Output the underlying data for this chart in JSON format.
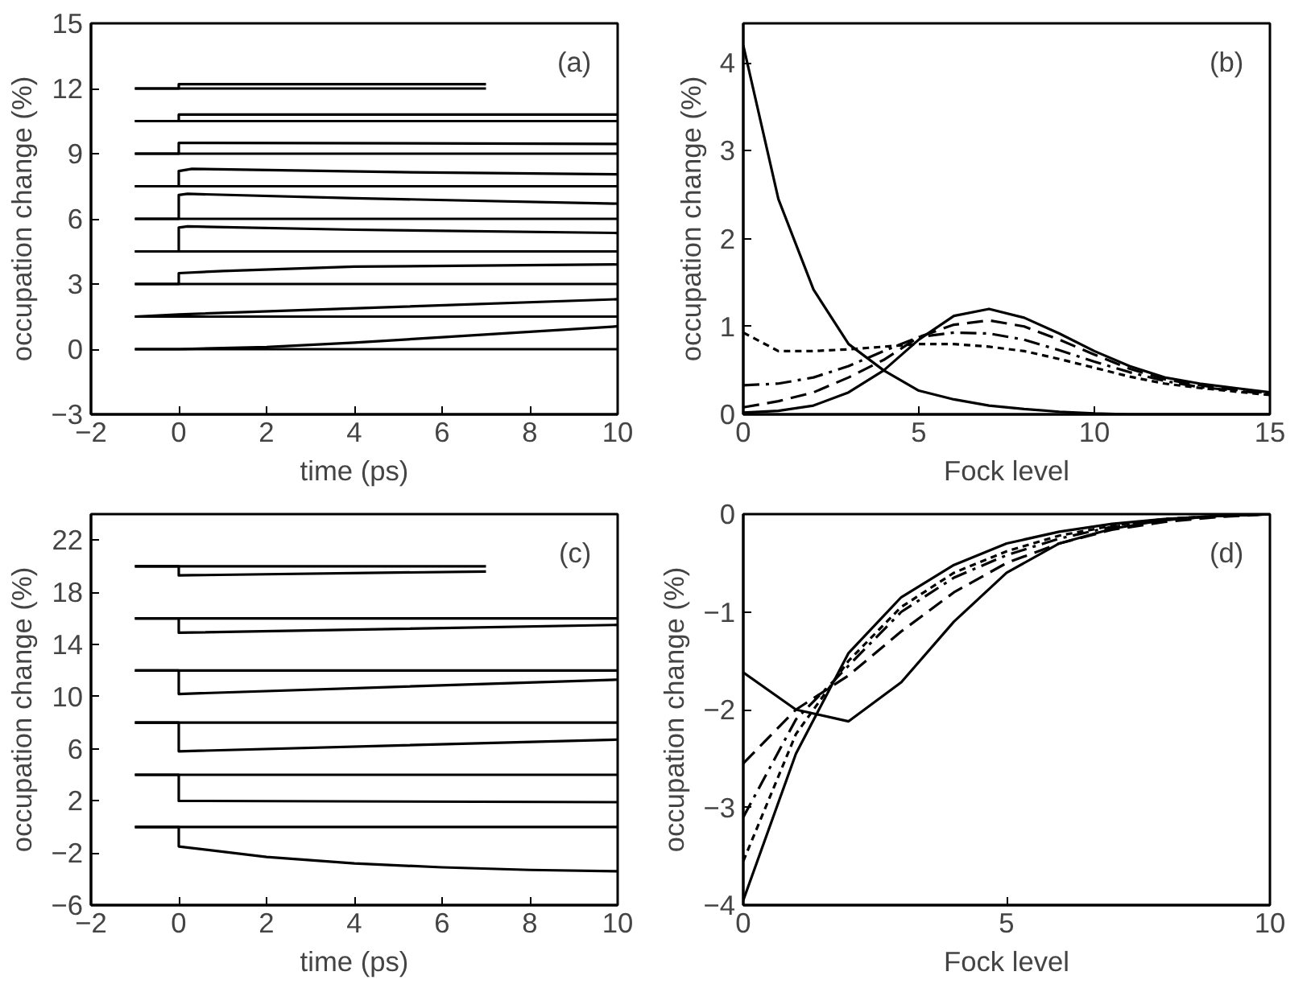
{
  "chart_data": [
    {
      "type": "line",
      "xlabel": "time (ps)",
      "ylabel": "occupation change (%)",
      "xlim": [
        -2,
        10
      ],
      "ylim": [
        -3,
        15
      ],
      "xticks": [
        -2,
        0,
        2,
        4,
        6,
        8,
        10
      ],
      "yticks": [
        -3,
        0,
        3,
        6,
        9,
        12,
        15
      ],
      "annotations": [
        "(a)"
      ],
      "grid": false,
      "line_style": "solid",
      "series": [
        {
          "color": "#000000",
          "x": [
            -1,
            10
          ],
          "values": [
            0,
            0
          ]
        },
        {
          "color": "#000000",
          "x": [
            -1,
            0,
            2,
            4,
            6,
            8,
            10
          ],
          "values": [
            0,
            0,
            0.1,
            0.3,
            0.55,
            0.8,
            1.05
          ]
        },
        {
          "color": "#000000",
          "x": [
            -1,
            10
          ],
          "values": [
            1.5,
            1.5
          ]
        },
        {
          "color": "#000000",
          "x": [
            -1,
            0,
            5,
            10
          ],
          "values": [
            1.5,
            1.6,
            1.95,
            2.3
          ]
        },
        {
          "color": "#000000",
          "x": [
            -1,
            10
          ],
          "values": [
            3,
            3
          ]
        },
        {
          "color": "#000000",
          "x": [
            -1,
            0,
            0,
            1,
            4,
            10
          ],
          "values": [
            3,
            3,
            3.5,
            3.6,
            3.8,
            3.9
          ]
        },
        {
          "color": "#000000",
          "x": [
            -1,
            10
          ],
          "values": [
            4.5,
            4.5
          ]
        },
        {
          "color": "#000000",
          "x": [
            -1,
            0,
            0,
            0.2,
            4,
            10
          ],
          "values": [
            4.5,
            4.5,
            5.6,
            5.65,
            5.5,
            5.35
          ]
        },
        {
          "color": "#000000",
          "x": [
            -1,
            10
          ],
          "values": [
            6,
            6
          ]
        },
        {
          "color": "#000000",
          "x": [
            -1,
            0,
            0,
            0.2,
            4,
            10
          ],
          "values": [
            6,
            6,
            7.1,
            7.15,
            6.95,
            6.7
          ]
        },
        {
          "color": "#000000",
          "x": [
            -1,
            10
          ],
          "values": [
            7.5,
            7.5
          ]
        },
        {
          "color": "#000000",
          "x": [
            -1,
            0,
            0,
            0.3,
            5,
            10
          ],
          "values": [
            7.5,
            7.5,
            8.2,
            8.3,
            8.15,
            8.05
          ]
        },
        {
          "color": "#000000",
          "x": [
            -1,
            10
          ],
          "values": [
            9,
            9
          ]
        },
        {
          "color": "#000000",
          "x": [
            -1,
            0,
            0,
            10
          ],
          "values": [
            9,
            9,
            9.5,
            9.45
          ]
        },
        {
          "color": "#000000",
          "x": [
            -1,
            10
          ],
          "values": [
            10.5,
            10.5
          ]
        },
        {
          "color": "#000000",
          "x": [
            -1,
            0,
            0,
            10
          ],
          "values": [
            10.5,
            10.5,
            10.8,
            10.8
          ]
        },
        {
          "color": "#000000",
          "x": [
            -1,
            7
          ],
          "values": [
            12,
            12
          ]
        },
        {
          "color": "#000000",
          "x": [
            -1,
            0,
            0,
            7
          ],
          "values": [
            12,
            12,
            12.2,
            12.2
          ]
        }
      ]
    },
    {
      "type": "line",
      "xlabel": "Fock level",
      "ylabel": "occupation change (%)",
      "xlim": [
        0,
        15
      ],
      "ylim": [
        0,
        4.45
      ],
      "xticks": [
        0,
        5,
        10,
        15
      ],
      "yticks": [
        0,
        1,
        2,
        3,
        4
      ],
      "annotations": [
        "(b)"
      ],
      "grid": false,
      "x": [
        0,
        1,
        2,
        3,
        4,
        5,
        6,
        7,
        8,
        9,
        10,
        11,
        12,
        13,
        14,
        15
      ],
      "series": [
        {
          "color": "#000000",
          "line_style": "solid",
          "values": [
            4.2,
            2.45,
            1.42,
            0.8,
            0.5,
            0.27,
            0.17,
            0.1,
            0.06,
            0.03,
            0.01,
            0,
            0,
            0,
            0,
            0
          ]
        },
        {
          "color": "#000000",
          "line_style": "solid",
          "values": [
            0.02,
            0.04,
            0.1,
            0.25,
            0.5,
            0.85,
            1.12,
            1.2,
            1.1,
            0.92,
            0.72,
            0.55,
            0.42,
            0.35,
            0.3,
            0.25
          ]
        },
        {
          "color": "#000000",
          "line_style": "dashed",
          "values": [
            0.08,
            0.15,
            0.25,
            0.42,
            0.62,
            0.88,
            1.02,
            1.07,
            1.0,
            0.85,
            0.68,
            0.52,
            0.4,
            0.33,
            0.28,
            0.24
          ]
        },
        {
          "color": "#000000",
          "line_style": "dashdot",
          "values": [
            0.33,
            0.35,
            0.42,
            0.55,
            0.72,
            0.88,
            0.93,
            0.92,
            0.85,
            0.73,
            0.6,
            0.48,
            0.38,
            0.31,
            0.27,
            0.23
          ]
        },
        {
          "color": "#000000",
          "line_style": "dotted",
          "values": [
            0.93,
            0.72,
            0.72,
            0.74,
            0.77,
            0.8,
            0.8,
            0.77,
            0.72,
            0.63,
            0.53,
            0.43,
            0.35,
            0.3,
            0.26,
            0.22
          ]
        }
      ]
    },
    {
      "type": "line",
      "xlabel": "time (ps)",
      "ylabel": "occupation change (%)",
      "xlim": [
        -2,
        10
      ],
      "ylim": [
        -6,
        24
      ],
      "xticks": [
        -2,
        0,
        2,
        4,
        6,
        8,
        10
      ],
      "yticks": [
        -6,
        -2,
        2,
        6,
        10,
        14,
        18,
        22
      ],
      "annotations": [
        "(c)"
      ],
      "grid": false,
      "line_style": "solid",
      "series": [
        {
          "color": "#000000",
          "x": [
            -1,
            10
          ],
          "values": [
            0,
            0
          ]
        },
        {
          "color": "#000000",
          "x": [
            -1,
            0,
            0,
            2,
            4,
            6,
            8,
            10
          ],
          "values": [
            0,
            0,
            -1.5,
            -2.3,
            -2.8,
            -3.1,
            -3.3,
            -3.4
          ]
        },
        {
          "color": "#000000",
          "x": [
            -1,
            10
          ],
          "values": [
            4,
            4
          ]
        },
        {
          "color": "#000000",
          "x": [
            -1,
            0,
            0,
            10
          ],
          "values": [
            4,
            4,
            2.0,
            1.9
          ]
        },
        {
          "color": "#000000",
          "x": [
            -1,
            10
          ],
          "values": [
            8,
            8
          ]
        },
        {
          "color": "#000000",
          "x": [
            -1,
            0,
            0,
            10
          ],
          "values": [
            8,
            8,
            5.8,
            6.7
          ]
        },
        {
          "color": "#000000",
          "x": [
            -1,
            10
          ],
          "values": [
            12,
            12
          ]
        },
        {
          "color": "#000000",
          "x": [
            -1,
            0,
            0,
            10
          ],
          "values": [
            12,
            12,
            10.2,
            11.3
          ]
        },
        {
          "color": "#000000",
          "x": [
            -1,
            10
          ],
          "values": [
            16,
            16
          ]
        },
        {
          "color": "#000000",
          "x": [
            -1,
            0,
            0,
            10
          ],
          "values": [
            16,
            16,
            14.9,
            15.5
          ]
        },
        {
          "color": "#000000",
          "x": [
            -1,
            7
          ],
          "values": [
            20,
            20
          ]
        },
        {
          "color": "#000000",
          "x": [
            -1,
            0,
            0,
            7
          ],
          "values": [
            20,
            20,
            19.3,
            19.6
          ]
        }
      ]
    },
    {
      "type": "line",
      "xlabel": "Fock level",
      "ylabel": "occupation change (%)",
      "xlim": [
        0,
        10
      ],
      "ylim": [
        -4,
        0
      ],
      "xticks": [
        0,
        5,
        10
      ],
      "yticks": [
        -4,
        -3,
        -2,
        -1,
        0
      ],
      "annotations": [
        "(d)"
      ],
      "grid": false,
      "x": [
        0,
        1,
        2,
        3,
        4,
        5,
        6,
        7,
        8,
        9,
        10
      ],
      "series": [
        {
          "color": "#000000",
          "line_style": "solid",
          "values": [
            -1.62,
            -2.0,
            -2.12,
            -1.72,
            -1.1,
            -0.6,
            -0.3,
            -0.15,
            -0.06,
            -0.02,
            0
          ]
        },
        {
          "color": "#000000",
          "line_style": "solid",
          "values": [
            -3.95,
            -2.45,
            -1.42,
            -0.85,
            -0.52,
            -0.3,
            -0.18,
            -0.1,
            -0.05,
            -0.02,
            0
          ]
        },
        {
          "color": "#000000",
          "line_style": "dashed",
          "values": [
            -2.55,
            -2.0,
            -1.65,
            -1.2,
            -0.8,
            -0.5,
            -0.3,
            -0.16,
            -0.08,
            -0.03,
            0
          ]
        },
        {
          "color": "#000000",
          "line_style": "dashdot",
          "values": [
            -3.1,
            -2.1,
            -1.55,
            -1.0,
            -0.65,
            -0.42,
            -0.25,
            -0.13,
            -0.06,
            -0.02,
            0
          ]
        },
        {
          "color": "#000000",
          "line_style": "dotted",
          "values": [
            -3.55,
            -2.25,
            -1.5,
            -0.95,
            -0.6,
            -0.38,
            -0.22,
            -0.12,
            -0.05,
            -0.02,
            0
          ]
        }
      ]
    }
  ]
}
